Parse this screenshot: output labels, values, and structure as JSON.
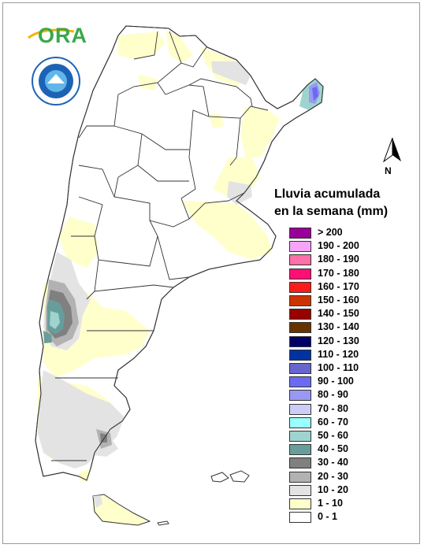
{
  "logo": {
    "ora_text": "ORA",
    "seal_text": "SERVICIO METEOROLÓGICO NACIONAL ARGENTINA"
  },
  "north_arrow": {
    "label": "N",
    "icon": "north-arrow-icon"
  },
  "legend": {
    "title_line1": "Lluvia acumulada",
    "title_line2": "en la semana (mm)",
    "classes": [
      {
        "label": "> 200",
        "color": "#990099"
      },
      {
        "label": "190 - 200",
        "color": "#f7a3f7"
      },
      {
        "label": "180 - 190",
        "color": "#ff6fa8"
      },
      {
        "label": "170 - 180",
        "color": "#ff0f73"
      },
      {
        "label": "160 - 170",
        "color": "#ff1a1a"
      },
      {
        "label": "150 - 160",
        "color": "#cc3300"
      },
      {
        "label": "140 - 150",
        "color": "#990000"
      },
      {
        "label": "130 - 140",
        "color": "#663300"
      },
      {
        "label": "120 - 130",
        "color": "#000066"
      },
      {
        "label": "110 - 120",
        "color": "#0033a0"
      },
      {
        "label": "100 - 110",
        "color": "#6666cc"
      },
      {
        "label": "90 - 100",
        "color": "#6b6bf2"
      },
      {
        "label": "80 - 90",
        "color": "#9999f2"
      },
      {
        "label": "70 - 80",
        "color": "#ccccf7"
      },
      {
        "label": "60 - 70",
        "color": "#99ffff"
      },
      {
        "label": "50 - 60",
        "color": "#9fd3cf"
      },
      {
        "label": "40 - 50",
        "color": "#679e9b"
      },
      {
        "label": "30 - 40",
        "color": "#808080"
      },
      {
        "label": "20 - 30",
        "color": "#b2b2b2"
      },
      {
        "label": "10 - 20",
        "color": "#e3e3e3"
      },
      {
        "label": "1 - 10",
        "color": "#ffffcc"
      },
      {
        "label": "0 - 1",
        "color": "#ffffff"
      }
    ]
  },
  "map": {
    "country_fill": "#ffffff",
    "border_color": "#333333"
  }
}
